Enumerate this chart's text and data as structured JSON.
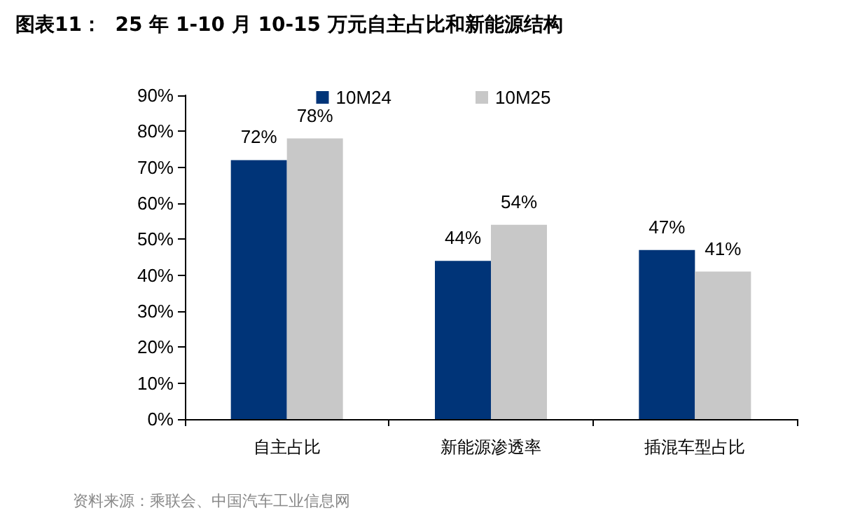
{
  "chart_data": {
    "type": "bar",
    "title": "图表11：  25 年 1-10 月 10-15 万元自主占比和新能源结构",
    "categories": [
      "自主占比",
      "新能源渗透率",
      "插混车型占比"
    ],
    "series": [
      {
        "name": "10M24",
        "color": "#003478",
        "values": [
          72,
          44,
          47
        ],
        "value_labels": [
          "72%",
          "44%",
          "47%"
        ]
      },
      {
        "name": "10M25",
        "color": "#c8c8c8",
        "values": [
          78,
          54,
          41
        ],
        "value_labels": [
          "78%",
          "54%",
          "41%"
        ]
      }
    ],
    "ylim": [
      0,
      90
    ],
    "yticks": [
      {
        "value": 0,
        "label": "0%"
      },
      {
        "value": 10,
        "label": "10%"
      },
      {
        "value": 20,
        "label": "20%"
      },
      {
        "value": 30,
        "label": "30%"
      },
      {
        "value": 40,
        "label": "40%"
      },
      {
        "value": 50,
        "label": "50%"
      },
      {
        "value": 60,
        "label": "60%"
      },
      {
        "value": 70,
        "label": "70%"
      },
      {
        "value": 80,
        "label": "80%"
      },
      {
        "value": 90,
        "label": "90%"
      }
    ],
    "grid": false,
    "legend": "top",
    "annotations": [
      "资料来源：乘联会、中国汽车工业信息网"
    ]
  }
}
